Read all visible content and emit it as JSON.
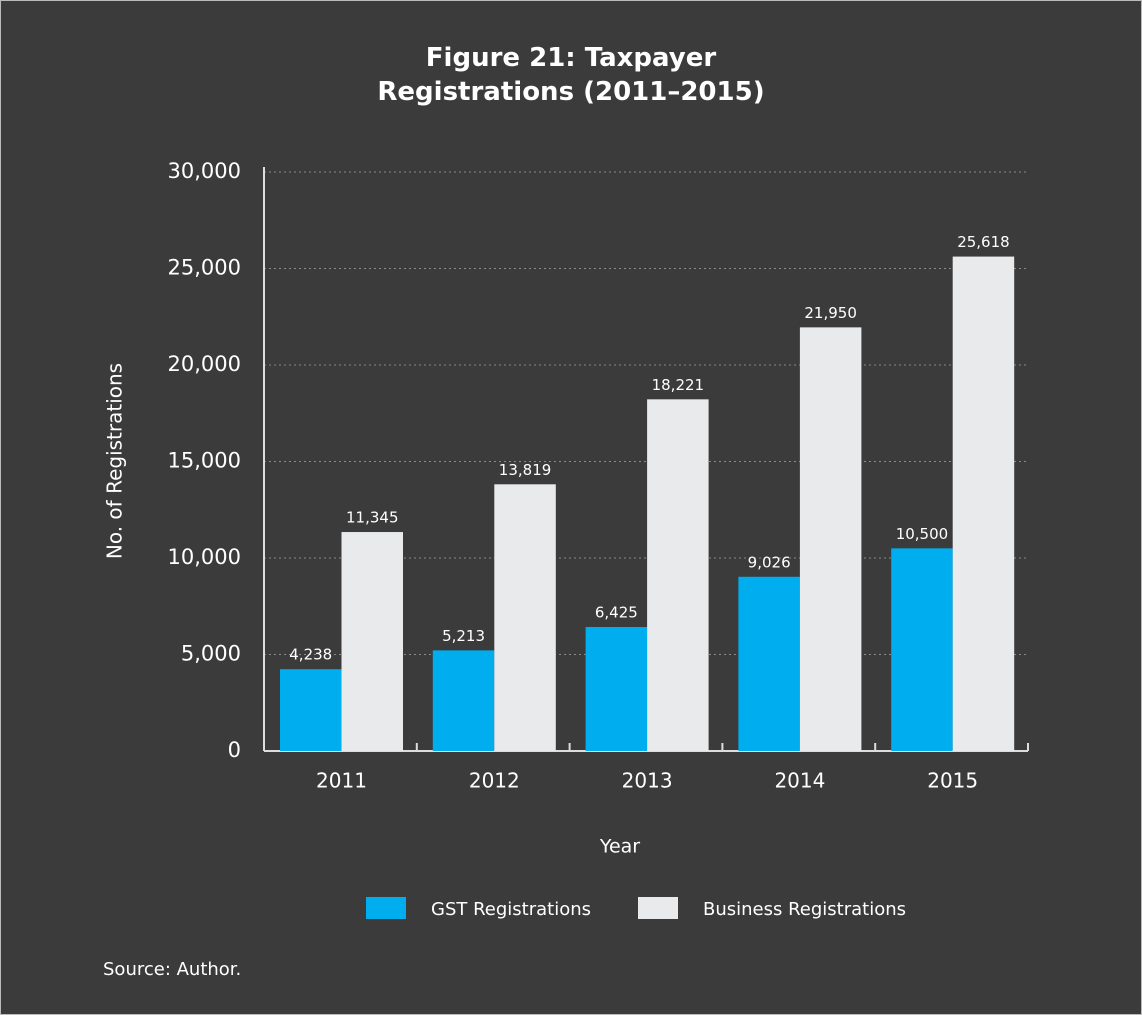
{
  "chart_data": {
    "type": "bar",
    "title": "Figure 21: Taxpayer Registrations (2011–2015)",
    "x_label": "Year",
    "y_label": "No. of Registrations",
    "source": "Source: Author.",
    "categories": [
      "2011",
      "2012",
      "2013",
      "2014",
      "2015"
    ],
    "series": [
      {
        "name": "GST Registrations",
        "color": "#00aeef",
        "values": [
          4238,
          5213,
          6425,
          9026,
          10500
        ],
        "value_labels": [
          "4,238",
          "5,213",
          "6,425",
          "9,026",
          "10,500"
        ]
      },
      {
        "name": "Business Registrations",
        "color": "#e9eaec",
        "values": [
          11345,
          13819,
          18221,
          21950,
          25618
        ],
        "value_labels": [
          "11,345",
          "13,819",
          "18,221",
          "21,950",
          "25,618"
        ]
      }
    ],
    "ylim": [
      0,
      30000
    ],
    "yticks": [
      0,
      {
        "value": 5000,
        "label": "5,000"
      },
      {
        "value": 10000,
        "label": "10,000"
      },
      {
        "value": 15000,
        "label": "15,000"
      },
      {
        "value": 20000,
        "label": "20,000"
      },
      {
        "value": 25000,
        "label": "25,000"
      },
      {
        "value": 30000,
        "label": "30,000"
      }
    ],
    "grid": true,
    "legend": "bottom"
  }
}
